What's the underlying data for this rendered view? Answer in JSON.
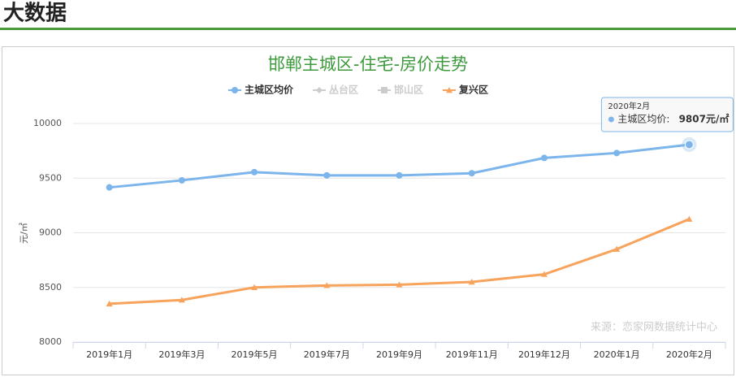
{
  "header": {
    "title": "大数据"
  },
  "chart_data": {
    "type": "line",
    "title": "邯郸主城区-住宅-房价走势",
    "ylabel": "元/㎡",
    "source": "来源：恋家网数据统计中心",
    "categories": [
      "2019年1月",
      "2019年3月",
      "2019年5月",
      "2019年7月",
      "2019年9月",
      "2019年11月",
      "2019年12月",
      "2020年1月",
      "2020年2月"
    ],
    "series": [
      {
        "name": "主城区均价",
        "color": "#7cb5ec",
        "marker": "circle",
        "visible": true,
        "values": [
          9415,
          9480,
          9555,
          9525,
          9525,
          9545,
          9685,
          9730,
          9807
        ],
        "value_labels": [
          null,
          null,
          null,
          null,
          null,
          null,
          null,
          null,
          "9807元/㎡"
        ]
      },
      {
        "name": "丛台区",
        "color": "#cccccc",
        "marker": "diamond",
        "visible": false,
        "values": [
          null,
          null,
          null,
          null,
          null,
          null,
          null,
          null,
          null
        ]
      },
      {
        "name": "邯山区",
        "color": "#cccccc",
        "marker": "square",
        "visible": false,
        "values": [
          null,
          null,
          null,
          null,
          null,
          null,
          null,
          null,
          null
        ]
      },
      {
        "name": "复兴区",
        "color": "#f7a35c",
        "marker": "triangle",
        "visible": true,
        "values": [
          8350,
          8385,
          8500,
          8518,
          8525,
          8550,
          8620,
          8850,
          9125
        ]
      }
    ],
    "tooltip": {
      "label": "主城区均价:"
    },
    "ylim": [
      8000,
      10000
    ],
    "yticks": [
      8000,
      8500,
      9000,
      9500,
      10000
    ],
    "grid": true
  }
}
